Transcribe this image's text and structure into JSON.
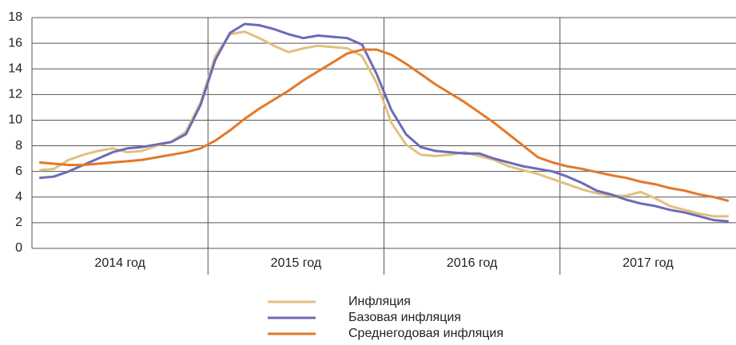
{
  "chart_data": {
    "type": "line",
    "year_labels": [
      "2014 год",
      "2015 год",
      "2016 год",
      "2017 год"
    ],
    "ylim": [
      0,
      18
    ],
    "yticks": [
      0,
      2,
      4,
      6,
      8,
      10,
      12,
      14,
      16,
      18
    ],
    "grid": true,
    "series": [
      {
        "name": "Инфляция",
        "color": "#e2c07f",
        "values": [
          6.1,
          6.2,
          6.9,
          7.3,
          7.6,
          7.8,
          7.5,
          7.6,
          8.0,
          8.3,
          9.1,
          11.4,
          15.0,
          16.7,
          16.9,
          16.4,
          15.8,
          15.3,
          15.6,
          15.8,
          15.7,
          15.6,
          15.0,
          12.9,
          9.8,
          8.1,
          7.3,
          7.2,
          7.3,
          7.5,
          7.2,
          6.9,
          6.4,
          6.1,
          5.8,
          5.4,
          5.0,
          4.6,
          4.3,
          4.1,
          4.1,
          4.4,
          3.9,
          3.3,
          3.0,
          2.7,
          2.5,
          2.5
        ]
      },
      {
        "name": "Базовая инфляция",
        "color": "#6b6bb8",
        "values": [
          5.5,
          5.6,
          6.0,
          6.5,
          7.0,
          7.5,
          7.8,
          7.9,
          8.1,
          8.3,
          8.9,
          11.2,
          14.7,
          16.8,
          17.5,
          17.4,
          17.1,
          16.7,
          16.4,
          16.6,
          16.5,
          16.4,
          15.9,
          13.6,
          10.8,
          8.9,
          7.9,
          7.6,
          7.5,
          7.4,
          7.4,
          7.0,
          6.7,
          6.4,
          6.2,
          6.0,
          5.6,
          5.1,
          4.5,
          4.2,
          3.8,
          3.5,
          3.3,
          3.0,
          2.8,
          2.5,
          2.2,
          2.1
        ]
      },
      {
        "name": "Среднегодовая инфляция",
        "color": "#e3782a",
        "values": [
          6.7,
          6.6,
          6.5,
          6.5,
          6.6,
          6.7,
          6.8,
          6.9,
          7.1,
          7.3,
          7.5,
          7.8,
          8.4,
          9.2,
          10.1,
          10.9,
          11.6,
          12.3,
          13.1,
          13.8,
          14.5,
          15.2,
          15.5,
          15.5,
          15.1,
          14.4,
          13.6,
          12.8,
          12.1,
          11.4,
          10.6,
          9.8,
          8.9,
          8.0,
          7.1,
          6.7,
          6.4,
          6.2,
          5.95,
          5.7,
          5.5,
          5.2,
          5.0,
          4.7,
          4.5,
          4.2,
          4.0,
          3.7
        ]
      }
    ]
  }
}
